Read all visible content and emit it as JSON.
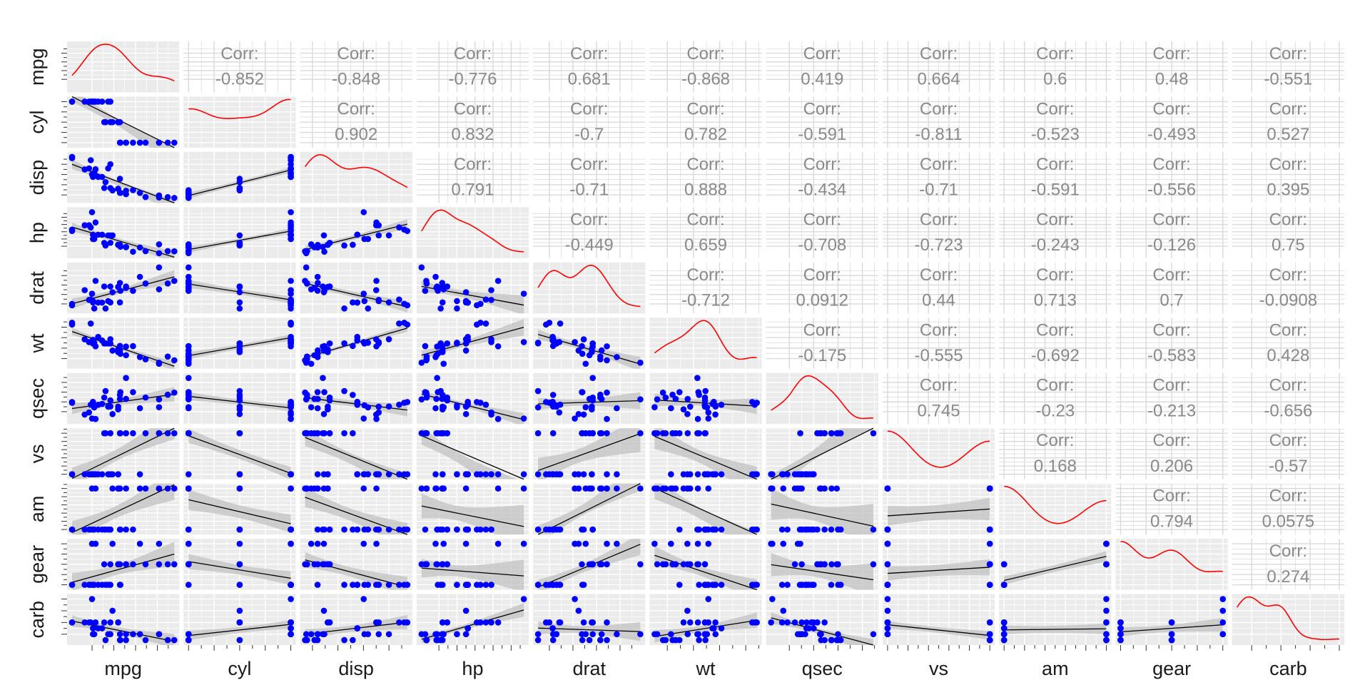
{
  "chart_data": {
    "type": "scatter-matrix",
    "variables": [
      "mpg",
      "cyl",
      "disp",
      "hp",
      "drat",
      "wt",
      "qsec",
      "vs",
      "am",
      "gear",
      "carb"
    ],
    "corr_label": "Corr:",
    "correlations": [
      [
        "",
        "-0.852",
        "-0.848",
        "-0.776",
        "0.681",
        "-0.868",
        "0.419",
        "0.664",
        "0.6",
        "0.48",
        "-0.551"
      ],
      [
        "",
        "",
        "0.902",
        "0.832",
        "-0.7",
        "0.782",
        "-0.591",
        "-0.811",
        "-0.523",
        "-0.493",
        "0.527"
      ],
      [
        "",
        "",
        "",
        "0.791",
        "-0.71",
        "0.888",
        "-0.434",
        "-0.71",
        "-0.591",
        "-0.556",
        "0.395"
      ],
      [
        "",
        "",
        "",
        "",
        "-0.449",
        "0.659",
        "-0.708",
        "-0.723",
        "-0.243",
        "-0.126",
        "0.75"
      ],
      [
        "",
        "",
        "",
        "",
        "",
        "-0.712",
        "0.0912",
        "0.44",
        "0.713",
        "0.7",
        "-0.0908"
      ],
      [
        "",
        "",
        "",
        "",
        "",
        "",
        "-0.175",
        "-0.555",
        "-0.692",
        "-0.583",
        "0.428"
      ],
      [
        "",
        "",
        "",
        "",
        "",
        "",
        "",
        "0.745",
        "-0.23",
        "-0.213",
        "-0.656"
      ],
      [
        "",
        "",
        "",
        "",
        "",
        "",
        "",
        "",
        "0.168",
        "0.206",
        "-0.57"
      ],
      [
        "",
        "",
        "",
        "",
        "",
        "",
        "",
        "",
        "",
        "0.794",
        "0.0575"
      ],
      [
        "",
        "",
        "",
        "",
        "",
        "",
        "",
        "",
        "",
        "",
        "0.274"
      ],
      [
        "",
        "",
        "",
        "",
        "",
        "",
        "",
        "",
        "",
        "",
        ""
      ]
    ],
    "diagonal": "density",
    "lower": "scatter with linear fit and confidence band",
    "colors": {
      "panel_bg": "#ebebeb",
      "grid": "#ffffff",
      "points": "#0000ff",
      "density": "#ff0000",
      "fit_line": "#000000",
      "band": "#c2c2c2",
      "corr_text": "#8a8a8a"
    },
    "data": {
      "mpg": [
        21.0,
        21.0,
        22.8,
        21.4,
        18.7,
        18.1,
        14.3,
        24.4,
        22.8,
        19.2,
        17.8,
        16.4,
        17.3,
        15.2,
        10.4,
        10.4,
        14.7,
        32.4,
        30.4,
        33.9,
        21.5,
        15.5,
        15.2,
        13.3,
        19.2,
        27.3,
        26.0,
        30.4,
        15.8,
        19.7,
        15.0,
        21.4
      ],
      "cyl": [
        6,
        6,
        4,
        6,
        8,
        6,
        8,
        4,
        4,
        6,
        6,
        8,
        8,
        8,
        8,
        8,
        8,
        4,
        4,
        4,
        4,
        8,
        8,
        8,
        8,
        4,
        4,
        4,
        8,
        6,
        8,
        4
      ],
      "disp": [
        160,
        160,
        108,
        258,
        360,
        225,
        360,
        146.7,
        140.8,
        167.6,
        167.6,
        275.8,
        275.8,
        275.8,
        472,
        460,
        440,
        78.7,
        75.7,
        71.1,
        120.1,
        318,
        304,
        350,
        400,
        79,
        120.3,
        95.1,
        351,
        145,
        301,
        121
      ],
      "hp": [
        110,
        110,
        93,
        110,
        175,
        105,
        245,
        62,
        95,
        123,
        123,
        180,
        180,
        180,
        205,
        215,
        230,
        66,
        52,
        65,
        97,
        150,
        150,
        245,
        175,
        66,
        91,
        113,
        264,
        175,
        335,
        109
      ],
      "drat": [
        3.9,
        3.9,
        3.85,
        3.08,
        3.15,
        2.76,
        3.21,
        3.69,
        3.92,
        3.92,
        3.92,
        3.07,
        3.07,
        3.07,
        2.93,
        3.0,
        3.23,
        4.08,
        4.93,
        4.22,
        3.7,
        2.76,
        3.15,
        3.73,
        3.08,
        4.08,
        4.43,
        3.77,
        4.22,
        3.62,
        3.54,
        4.11
      ],
      "wt": [
        2.62,
        2.875,
        2.32,
        3.215,
        3.44,
        3.46,
        3.57,
        3.19,
        3.15,
        3.44,
        3.44,
        4.07,
        3.73,
        3.78,
        5.25,
        5.424,
        5.345,
        2.2,
        1.615,
        1.835,
        2.465,
        3.52,
        3.435,
        3.84,
        3.845,
        1.935,
        2.14,
        1.513,
        3.17,
        2.77,
        3.57,
        2.78
      ],
      "qsec": [
        16.46,
        17.02,
        18.61,
        19.44,
        17.02,
        20.22,
        15.84,
        20.0,
        22.9,
        18.3,
        18.9,
        17.4,
        17.6,
        18.0,
        17.98,
        17.82,
        17.42,
        19.47,
        18.52,
        19.9,
        20.01,
        16.87,
        17.3,
        15.41,
        17.05,
        18.9,
        16.7,
        16.9,
        14.5,
        15.5,
        14.6,
        18.6
      ],
      "vs": [
        0,
        0,
        1,
        1,
        0,
        1,
        0,
        1,
        1,
        1,
        1,
        0,
        0,
        0,
        0,
        0,
        0,
        1,
        1,
        1,
        1,
        0,
        0,
        0,
        0,
        1,
        0,
        1,
        0,
        0,
        0,
        1
      ],
      "am": [
        1,
        1,
        1,
        0,
        0,
        0,
        0,
        0,
        0,
        0,
        0,
        0,
        0,
        0,
        0,
        0,
        0,
        1,
        1,
        1,
        0,
        0,
        0,
        0,
        0,
        1,
        1,
        1,
        1,
        1,
        1,
        1
      ],
      "gear": [
        4,
        4,
        4,
        3,
        3,
        3,
        3,
        4,
        4,
        4,
        4,
        3,
        3,
        3,
        3,
        3,
        3,
        4,
        4,
        4,
        3,
        3,
        3,
        3,
        3,
        4,
        5,
        5,
        5,
        5,
        5,
        4
      ],
      "carb": [
        4,
        4,
        1,
        1,
        2,
        1,
        4,
        2,
        2,
        4,
        4,
        3,
        3,
        3,
        4,
        4,
        4,
        1,
        2,
        1,
        1,
        2,
        2,
        4,
        2,
        1,
        2,
        2,
        4,
        6,
        8,
        2
      ]
    }
  }
}
